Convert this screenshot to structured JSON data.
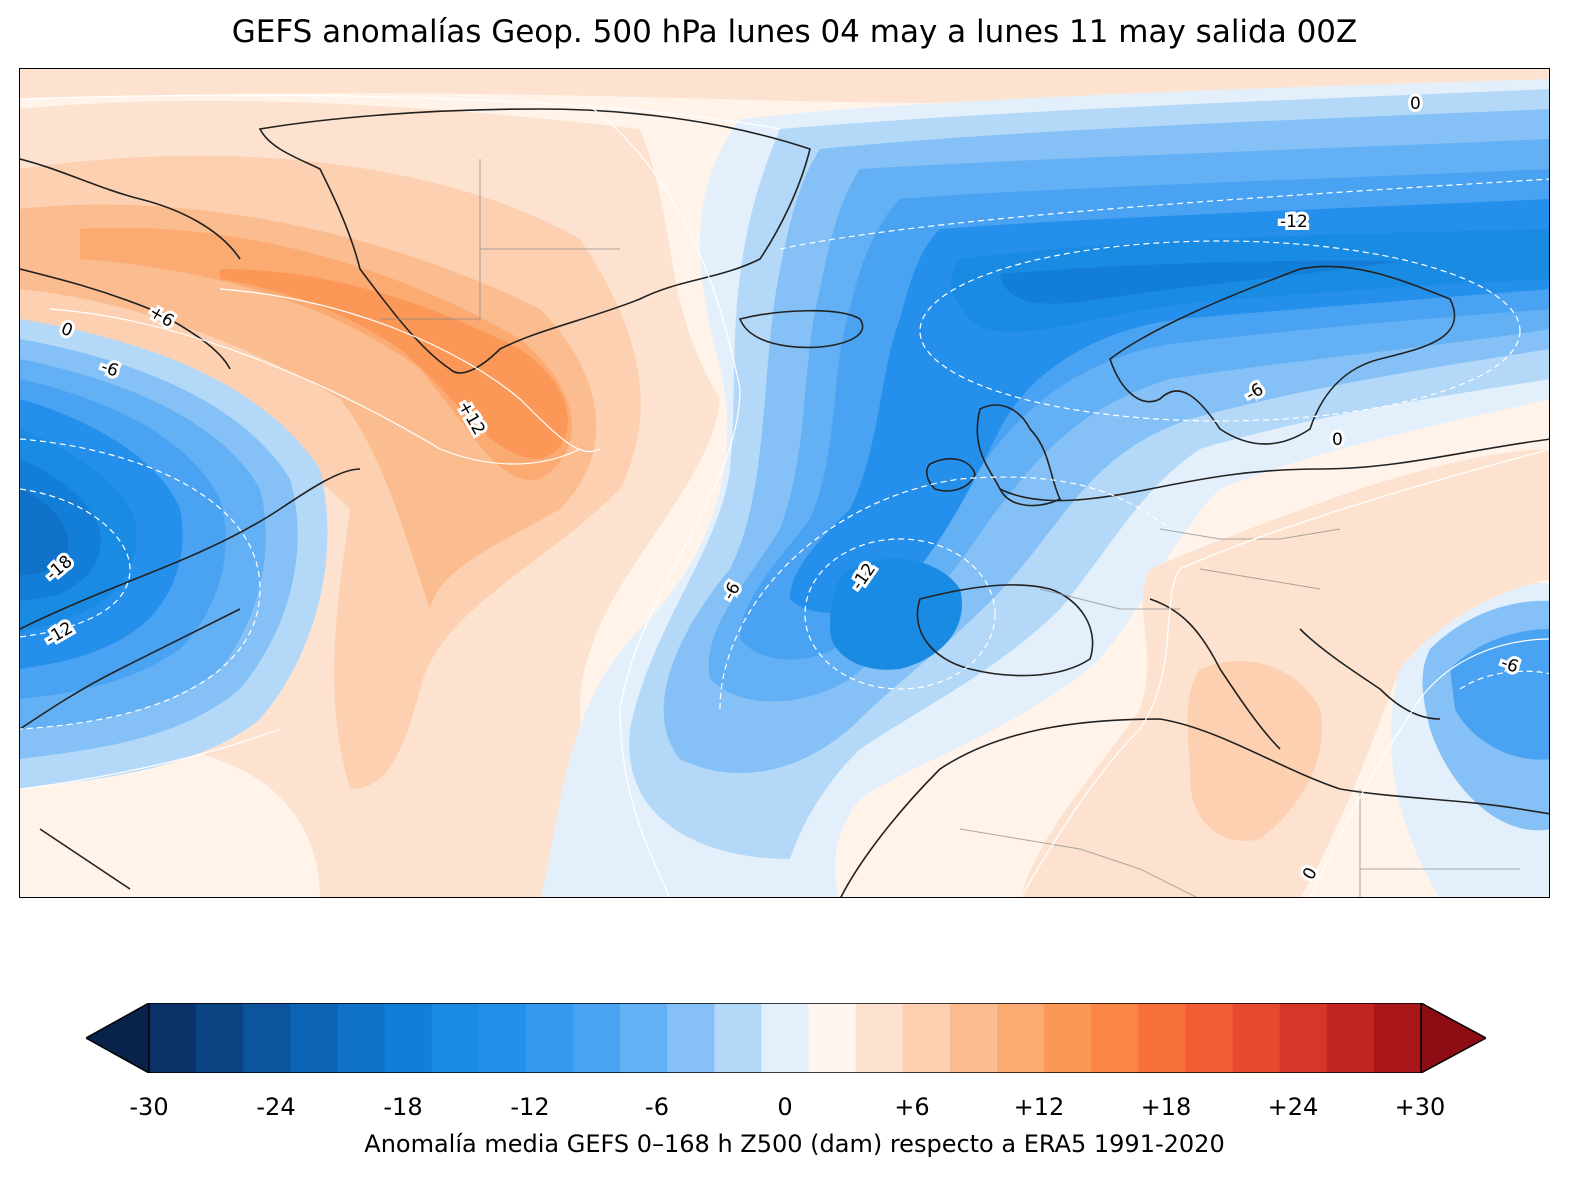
{
  "title": "GEFS anomalías Geop. 500 hPa lunes 04 may a lunes 11 may salida 00Z",
  "contour_labels": [
    "0",
    "-12",
    "+6",
    "0",
    "-6",
    "+12",
    "-6",
    "-18",
    "-12",
    "-6",
    "-12",
    "0",
    "-6",
    "0"
  ],
  "colorbar": {
    "ticks": [
      "-30",
      "-24",
      "-18",
      "-12",
      "-6",
      "0",
      "+6",
      "+12",
      "+18",
      "+24",
      "+30"
    ],
    "label": "Anomalía media GEFS 0–168 h Z500 (dam) respecto a ERA5 1991-2020",
    "colors": [
      "#08224a",
      "#0a3268",
      "#0b4483",
      "#0c559c",
      "#0d63b3",
      "#0f71c8",
      "#137ed8",
      "#1a8be3",
      "#258fec",
      "#3599f0",
      "#4aa3f2",
      "#63b0f4",
      "#85c1f6",
      "#b4d8f8",
      "#e3f0fb",
      "#fff6ef",
      "#fde3cf",
      "#fcd0b0",
      "#fbbd90",
      "#fbaa72",
      "#fb9858",
      "#fa8545",
      "#f8713a",
      "#f25d33",
      "#e7492d",
      "#d63627",
      "#c22521",
      "#a9171a",
      "#8e0c14"
    ]
  }
}
